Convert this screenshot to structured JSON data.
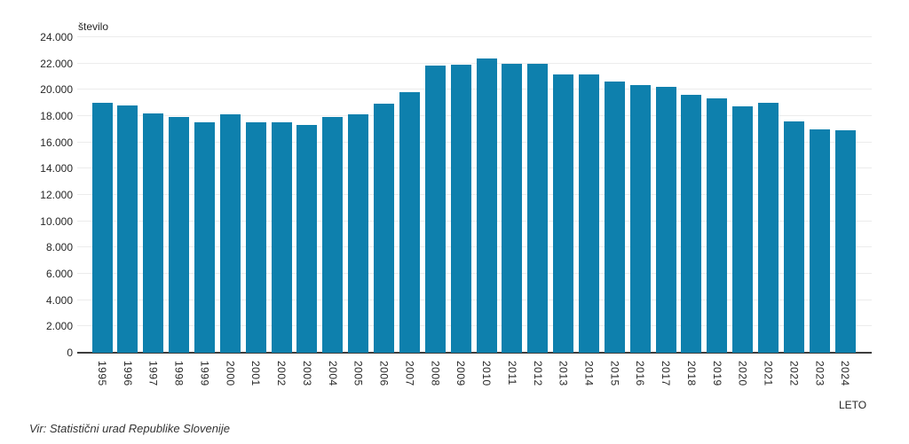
{
  "chart": {
    "source": "Vir: Statistični urad Republike Slovenije",
    "bar_color": "#0e80ad",
    "grid_color": "#ececec",
    "axis_color": "#3d3d3d",
    "text_color": "#262626"
  },
  "chart_data": {
    "type": "bar",
    "title": "",
    "xlabel": "LETO",
    "ylabel": "število",
    "categories": [
      "1995",
      "1996",
      "1997",
      "1998",
      "1999",
      "2000",
      "2001",
      "2002",
      "2003",
      "2004",
      "2005",
      "2006",
      "2007",
      "2008",
      "2009",
      "2010",
      "2011",
      "2012",
      "2013",
      "2014",
      "2015",
      "2016",
      "2017",
      "2018",
      "2019",
      "2020",
      "2021",
      "2022",
      "2023",
      "2024"
    ],
    "values": [
      19000,
      18800,
      18200,
      17900,
      17550,
      18150,
      17500,
      17550,
      17300,
      17950,
      18150,
      18950,
      19800,
      21850,
      21900,
      22350,
      22000,
      21950,
      21150,
      21200,
      20650,
      20350,
      20250,
      19600,
      19350,
      18750,
      19000,
      17600,
      17000,
      16900
    ],
    "ylim": [
      0,
      24000
    ],
    "ytick_values": [
      0,
      2000,
      4000,
      6000,
      8000,
      10000,
      12000,
      14000,
      16000,
      18000,
      20000,
      22000,
      24000
    ],
    "ytick_labels": [
      "0",
      "2.000",
      "4.000",
      "6.000",
      "8.000",
      "10.000",
      "12.000",
      "14.000",
      "16.000",
      "18.000",
      "20.000",
      "22.000",
      "24.000"
    ],
    "grid": true,
    "legend": false
  }
}
